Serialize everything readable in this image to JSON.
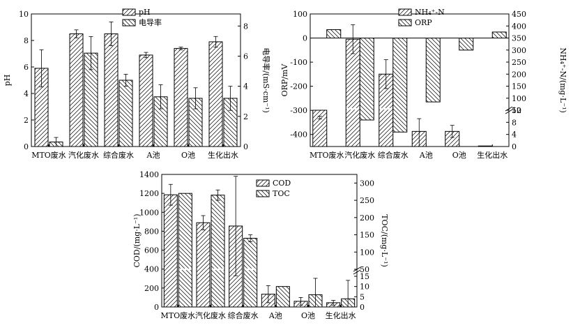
{
  "chart_data": [
    {
      "id": "ph_cond",
      "type": "bar",
      "categories": [
        "MTO废水",
        "汽化废水",
        "综合废水",
        "A池",
        "O池",
        "生化出水"
      ],
      "series": [
        {
          "name": "pH",
          "axis": "left",
          "values": [
            5.9,
            8.5,
            8.5,
            6.9,
            7.4,
            7.9
          ],
          "err": [
            1.4,
            0.3,
            0.9,
            0.2,
            0.1,
            0.4
          ]
        },
        {
          "name": "电导率",
          "axis": "right",
          "values": [
            0.3,
            6.2,
            4.4,
            3.3,
            3.2,
            3.2
          ],
          "err": [
            0.3,
            1.1,
            0.4,
            0.8,
            0.7,
            0.8
          ]
        }
      ],
      "ylabel": "pH",
      "ylim": [
        0,
        10
      ],
      "yticks": [
        0,
        2,
        4,
        6,
        8,
        10
      ],
      "y2label": "电导率/(mS·cm⁻¹)",
      "y2lim": [
        0,
        8.8
      ],
      "y2ticks": [
        0,
        2,
        4,
        6,
        8
      ],
      "legend": "top-center"
    },
    {
      "id": "orp_nh4",
      "type": "bar",
      "categories": [
        "MTO废水",
        "汽化废水",
        "综合废水",
        "A池",
        "O池",
        "生化出水"
      ],
      "series": [
        {
          "name": "NH₄⁺-N",
          "axis": "right",
          "values": [
            12,
            345,
            200,
            5,
            5,
            0
          ],
          "err": [
            2,
            60,
            60,
            10,
            2,
            0
          ]
        },
        {
          "name": "ORP",
          "axis": "left",
          "values": [
            35,
            -340,
            -390,
            -265,
            -50,
            25
          ],
          "err": [
            0,
            0,
            0,
            0,
            0,
            0
          ]
        }
      ],
      "ylabel": "ORP/mV",
      "ylim": [
        -450,
        100
      ],
      "yticks": [
        -400,
        -300,
        -200,
        -100,
        0,
        100
      ],
      "y2label": "NH₄⁺-N/(mg·L⁻¹)",
      "y2lim": [
        0,
        450
      ],
      "y2ticks": [
        0,
        4,
        8,
        12,
        50,
        100,
        150,
        200,
        250,
        300,
        350,
        400,
        450
      ],
      "y2break": "12-50",
      "legend": "top-center"
    },
    {
      "id": "cod_toc",
      "type": "bar",
      "categories": [
        "MTO废水",
        "汽化废水",
        "综合废水",
        "A池",
        "O池",
        "生化出水"
      ],
      "series": [
        {
          "name": "COD",
          "axis": "left",
          "values": [
            1185,
            890,
            855,
            135,
            60,
            45
          ],
          "err": [
            110,
            75,
            525,
            90,
            40,
            25
          ]
        },
        {
          "name": "TOC",
          "axis": "right",
          "values": [
            270,
            265,
            140,
            10,
            6,
            4
          ],
          "err": [
            0,
            15,
            10,
            0,
            8,
            9
          ]
        }
      ],
      "ylabel": "COD/(mg·L⁻¹)",
      "ylim": [
        0,
        1400
      ],
      "yticks": [
        0,
        200,
        400,
        600,
        800,
        1000,
        1200,
        1400
      ],
      "y2label": "TOC/(mg·L⁻¹)",
      "y2lim": [
        0,
        325
      ],
      "y2ticks": [
        0,
        5,
        10,
        15,
        50,
        100,
        150,
        200,
        250,
        300
      ],
      "y2break": "15-50",
      "legend": "top-center"
    }
  ]
}
